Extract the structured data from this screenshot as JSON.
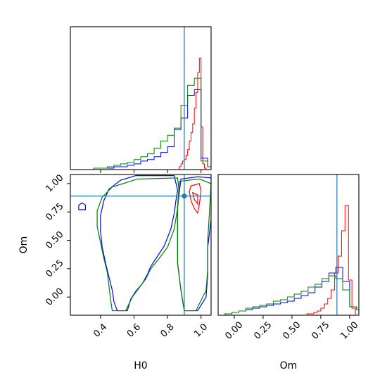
{
  "chart_data": {
    "type": "corner",
    "parameters": [
      "H0",
      "Om"
    ],
    "truths": {
      "H0": 0.9,
      "Om": 0.89
    },
    "colors": {
      "red": "#ff0000",
      "blue": "#0000ff",
      "green": "#008000",
      "truth": "#1f77b4"
    },
    "series": [
      {
        "color": "red"
      },
      {
        "color": "blue"
      },
      {
        "color": "green"
      }
    ],
    "panels": [
      {
        "kind": "hist",
        "param": "H0",
        "xlim": [
          0.22,
          1.06
        ],
        "ylim": [
          0,
          1
        ],
        "x_ticks": [
          0.4,
          0.6,
          0.8,
          1.0
        ],
        "x_tick_labels": [
          "",
          "",
          "",
          ""
        ],
        "y_ticks": [],
        "y_tick_labels": [],
        "hists": [
          {
            "color": "red",
            "edges": [
              0.86,
              0.87,
              0.88,
              0.89,
              0.9,
              0.91,
              0.92,
              0.93,
              0.94,
              0.95,
              0.96,
              0.97,
              0.98,
              0.99,
              1.0,
              1.01,
              1.02,
              1.03,
              1.04
            ],
            "counts": [
              0,
              0.02,
              0.04,
              0.06,
              0.07,
              0.1,
              0.14,
              0.2,
              0.26,
              0.32,
              0.43,
              0.54,
              0.68,
              0.78,
              0.3,
              0.04,
              0.01,
              0
            ]
          },
          {
            "color": "blue",
            "edges": [
              0.24,
              0.28,
              0.32,
              0.36,
              0.4,
              0.44,
              0.48,
              0.52,
              0.56,
              0.6,
              0.64,
              0.68,
              0.72,
              0.76,
              0.8,
              0.84,
              0.88,
              0.92,
              0.96,
              1.0,
              1.04,
              1.06
            ],
            "counts": [
              0,
              0,
              0.0,
              0.01,
              0.01,
              0.01,
              0.02,
              0.02,
              0.03,
              0.04,
              0.06,
              0.07,
              0.09,
              0.12,
              0.16,
              0.28,
              0.36,
              0.52,
              0.56,
              0.08,
              0.02
            ]
          },
          {
            "color": "green",
            "edges": [
              0.24,
              0.28,
              0.32,
              0.36,
              0.4,
              0.44,
              0.48,
              0.52,
              0.56,
              0.6,
              0.64,
              0.68,
              0.72,
              0.76,
              0.8,
              0.84,
              0.88,
              0.92,
              0.96,
              1.0,
              1.04,
              1.06
            ],
            "counts": [
              0,
              0.0,
              0.0,
              0.01,
              0.01,
              0.02,
              0.03,
              0.04,
              0.05,
              0.07,
              0.09,
              0.11,
              0.15,
              0.2,
              0.24,
              0.29,
              0.45,
              0.59,
              0.64,
              0.06,
              0.02
            ]
          }
        ]
      },
      {
        "kind": "hist",
        "param": "Om",
        "xlim": [
          -0.14,
          1.08
        ],
        "ylim": [
          0,
          1
        ],
        "x_ticks": [
          0.0,
          0.25,
          0.5,
          0.75,
          1.0
        ],
        "x_tick_labels": [
          "0.00",
          "0.25",
          "0.50",
          "0.75",
          "1.00"
        ],
        "x_label": "Om",
        "y_ticks": [],
        "y_tick_labels": [],
        "hists": [
          {
            "color": "red",
            "edges": [
              0.6,
              0.63,
              0.66,
              0.69,
              0.72,
              0.75,
              0.78,
              0.81,
              0.84,
              0.87,
              0.9,
              0.93,
              0.96,
              0.99,
              1.02,
              1.05
            ],
            "counts": [
              0,
              0.01,
              0.01,
              0.02,
              0.03,
              0.05,
              0.08,
              0.12,
              0.18,
              0.3,
              0.42,
              0.6,
              0.78,
              0.25,
              0.05
            ]
          },
          {
            "color": "blue",
            "edges": [
              -0.08,
              -0.02,
              0.04,
              0.1,
              0.16,
              0.22,
              0.28,
              0.34,
              0.4,
              0.46,
              0.52,
              0.58,
              0.64,
              0.7,
              0.76,
              0.82,
              0.88,
              0.94,
              1.0,
              1.06,
              1.08
            ],
            "counts": [
              0.01,
              0.02,
              0.03,
              0.04,
              0.05,
              0.06,
              0.07,
              0.08,
              0.09,
              0.1,
              0.12,
              0.14,
              0.16,
              0.2,
              0.24,
              0.3,
              0.34,
              0.24,
              0.06,
              0.04
            ]
          },
          {
            "color": "green",
            "edges": [
              -0.08,
              -0.02,
              0.04,
              0.1,
              0.16,
              0.22,
              0.28,
              0.34,
              0.4,
              0.46,
              0.52,
              0.58,
              0.64,
              0.7,
              0.76,
              0.82,
              0.88,
              0.94,
              1.0,
              1.06,
              1.08
            ],
            "counts": [
              0.01,
              0.02,
              0.03,
              0.05,
              0.06,
              0.07,
              0.08,
              0.1,
              0.11,
              0.13,
              0.15,
              0.17,
              0.2,
              0.22,
              0.26,
              0.28,
              0.26,
              0.18,
              0.06,
              0.04
            ]
          }
        ]
      },
      {
        "kind": "contour",
        "params": [
          "H0",
          "Om"
        ],
        "xlim": [
          0.22,
          1.06
        ],
        "ylim": [
          -0.16,
          1.08
        ],
        "x_ticks": [
          0.4,
          0.6,
          0.8,
          1.0
        ],
        "x_tick_labels": [
          "0.4",
          "0.6",
          "0.8",
          "1.0"
        ],
        "y_ticks": [
          0.0,
          0.25,
          0.5,
          0.75,
          1.0
        ],
        "y_tick_labels": [
          "0.00",
          "0.25",
          "0.50",
          "0.75",
          "1.00"
        ],
        "x_label": "H0",
        "y_label": "Om",
        "contours": [
          {
            "color": "red",
            "points": [
              [
                0.94,
                0.98
              ],
              [
                0.99,
                1.0
              ],
              [
                1.0,
                0.93
              ],
              [
                0.99,
                0.82
              ],
              [
                0.98,
                0.74
              ],
              [
                0.96,
                0.78
              ],
              [
                0.94,
                0.85
              ],
              [
                0.93,
                0.93
              ]
            ]
          },
          {
            "color": "red",
            "points": [
              [
                0.95,
                0.92
              ],
              [
                0.98,
                0.9
              ],
              [
                0.98,
                0.82
              ],
              [
                0.96,
                0.86
              ]
            ]
          },
          {
            "color": "blue",
            "points": [
              [
                0.61,
                1.07
              ],
              [
                0.84,
                1.07
              ],
              [
                0.86,
                0.94
              ],
              [
                0.85,
                0.85
              ],
              [
                0.84,
                0.74
              ],
              [
                0.82,
                0.6
              ],
              [
                0.78,
                0.45
              ],
              [
                0.74,
                0.36
              ],
              [
                0.7,
                0.27
              ],
              [
                0.68,
                0.2
              ],
              [
                0.65,
                0.12
              ],
              [
                0.61,
                0.05
              ],
              [
                0.58,
                -0.02
              ],
              [
                0.56,
                -0.12
              ],
              [
                0.5,
                -0.12
              ],
              [
                0.48,
                -0.04
              ],
              [
                0.47,
                0.06
              ],
              [
                0.45,
                0.18
              ],
              [
                0.43,
                0.3
              ],
              [
                0.41,
                0.44
              ],
              [
                0.4,
                0.58
              ],
              [
                0.4,
                0.72
              ],
              [
                0.42,
                0.85
              ],
              [
                0.45,
                0.95
              ],
              [
                0.52,
                1.03
              ]
            ]
          },
          {
            "color": "blue",
            "points": [
              [
                0.29,
                0.83
              ],
              [
                0.31,
                0.81
              ],
              [
                0.31,
                0.77
              ],
              [
                0.27,
                0.77
              ],
              [
                0.27,
                0.81
              ]
            ]
          },
          {
            "color": "blue",
            "points": [
              [
                0.88,
                1.04
              ],
              [
                0.98,
                1.06
              ],
              [
                1.06,
                1.05
              ],
              [
                1.06,
                0.68
              ],
              [
                1.04,
                0.44
              ],
              [
                1.04,
                0.2
              ],
              [
                1.03,
                0.0
              ],
              [
                0.98,
                -0.12
              ],
              [
                0.9,
                -0.12
              ],
              [
                0.88,
                0.06
              ],
              [
                0.86,
                0.3
              ],
              [
                0.86,
                0.56
              ],
              [
                0.86,
                0.8
              ]
            ]
          },
          {
            "color": "green",
            "points": [
              [
                0.62,
                1.04
              ],
              [
                0.86,
                1.05
              ],
              [
                0.87,
                0.92
              ],
              [
                0.86,
                0.78
              ],
              [
                0.84,
                0.6
              ],
              [
                0.8,
                0.44
              ],
              [
                0.75,
                0.34
              ],
              [
                0.7,
                0.25
              ],
              [
                0.67,
                0.16
              ],
              [
                0.63,
                0.08
              ],
              [
                0.59,
                0.0
              ],
              [
                0.55,
                -0.12
              ],
              [
                0.47,
                -0.12
              ],
              [
                0.46,
                -0.02
              ],
              [
                0.45,
                0.1
              ],
              [
                0.44,
                0.22
              ],
              [
                0.42,
                0.34
              ],
              [
                0.4,
                0.48
              ],
              [
                0.38,
                0.62
              ],
              [
                0.38,
                0.76
              ],
              [
                0.41,
                0.88
              ],
              [
                0.47,
                0.97
              ]
            ]
          },
          {
            "color": "green",
            "points": [
              [
                0.87,
                1.02
              ],
              [
                0.99,
                1.04
              ],
              [
                1.06,
                1.0
              ],
              [
                1.05,
                0.74
              ],
              [
                1.04,
                0.5
              ],
              [
                1.04,
                0.24
              ],
              [
                1.03,
                0.06
              ],
              [
                0.97,
                -0.12
              ],
              [
                0.9,
                -0.12
              ],
              [
                0.88,
                0.06
              ],
              [
                0.86,
                0.3
              ],
              [
                0.86,
                0.56
              ],
              [
                0.86,
                0.8
              ]
            ]
          }
        ]
      }
    ]
  }
}
